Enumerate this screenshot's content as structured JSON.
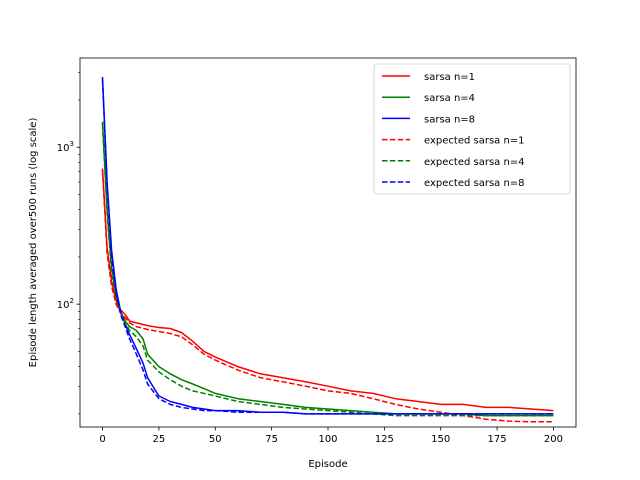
{
  "chart_data": {
    "type": "line",
    "title": "",
    "xlabel": "Episode",
    "ylabel": "Episode length averaged over500 runs (log scale)",
    "yscale": "log",
    "xlim": [
      -10,
      210
    ],
    "ylim": [
      16.5,
      3700
    ],
    "xticks": [
      0,
      25,
      50,
      75,
      100,
      125,
      150,
      175,
      200
    ],
    "yticks": [
      {
        "value": 100,
        "base": "10",
        "exp": "2"
      },
      {
        "value": 1000,
        "base": "10",
        "exp": "3"
      }
    ],
    "grid": false,
    "legend_position": "top-right",
    "series": [
      {
        "name": "sarsa n=1",
        "color": "#ff0000",
        "dash": "solid",
        "x": [
          0,
          2,
          4,
          6,
          8,
          10,
          12,
          15,
          20,
          25,
          30,
          35,
          40,
          45,
          50,
          60,
          70,
          80,
          90,
          100,
          110,
          120,
          130,
          140,
          150,
          160,
          170,
          180,
          190,
          200
        ],
        "y": [
          730,
          230,
          140,
          105,
          92,
          86,
          78,
          76,
          73,
          71,
          70,
          66,
          58,
          50,
          46,
          40,
          36,
          34,
          32,
          30,
          28,
          27,
          25,
          24,
          23,
          23,
          22,
          22,
          21.5,
          21
        ]
      },
      {
        "name": "sarsa n=4",
        "color": "#008000",
        "dash": "solid",
        "x": [
          0,
          2,
          4,
          6,
          8,
          10,
          12,
          15,
          18,
          20,
          25,
          30,
          35,
          40,
          45,
          50,
          60,
          70,
          80,
          90,
          100,
          110,
          120,
          130,
          140,
          150,
          160,
          170,
          180,
          190,
          200
        ],
        "y": [
          1450,
          400,
          170,
          115,
          90,
          78,
          72,
          68,
          60,
          48,
          40,
          36,
          33,
          31,
          29,
          27,
          25,
          24,
          23,
          22,
          21.5,
          21,
          20.5,
          20,
          20,
          20,
          20,
          19.5,
          19.5,
          19.5,
          19.5
        ]
      },
      {
        "name": "sarsa n=8",
        "color": "#0000ff",
        "dash": "solid",
        "x": [
          0,
          2,
          4,
          6,
          8,
          10,
          12,
          15,
          18,
          20,
          25,
          30,
          35,
          40,
          45,
          50,
          60,
          70,
          80,
          90,
          100,
          110,
          120,
          130,
          140,
          150,
          160,
          170,
          180,
          190,
          200
        ],
        "y": [
          2800,
          600,
          220,
          125,
          90,
          75,
          64,
          52,
          42,
          34,
          26,
          24,
          23,
          22,
          21.5,
          21,
          21,
          20.5,
          20.5,
          20,
          20,
          20,
          20,
          20,
          20,
          20,
          20,
          20,
          20,
          20,
          20
        ]
      },
      {
        "name": "expected sarsa n=1",
        "color": "#ff0000",
        "dash": "dashed",
        "x": [
          0,
          2,
          4,
          6,
          8,
          10,
          12,
          15,
          20,
          25,
          30,
          35,
          40,
          45,
          50,
          60,
          70,
          80,
          90,
          100,
          110,
          120,
          130,
          140,
          150,
          160,
          170,
          180,
          190,
          200
        ],
        "y": [
          720,
          210,
          130,
          100,
          88,
          82,
          76,
          72,
          69,
          67,
          65,
          62,
          55,
          48,
          44,
          38,
          34,
          32,
          30,
          28,
          27,
          25,
          23,
          21.5,
          20.5,
          19.5,
          18.5,
          18,
          17.8,
          17.8
        ]
      },
      {
        "name": "expected sarsa n=4",
        "color": "#008000",
        "dash": "dashed",
        "x": [
          0,
          2,
          4,
          6,
          8,
          10,
          12,
          15,
          18,
          20,
          25,
          30,
          35,
          40,
          45,
          50,
          60,
          70,
          80,
          90,
          100,
          110,
          120,
          130,
          140,
          150,
          160,
          170,
          180,
          190,
          200
        ],
        "y": [
          1400,
          380,
          160,
          110,
          88,
          76,
          68,
          62,
          54,
          44,
          37,
          33,
          30,
          28,
          27,
          26,
          24,
          23,
          22,
          21.5,
          21,
          20.5,
          20,
          19.5,
          19.5,
          19.5,
          19.5,
          19.5,
          19.5,
          19.5,
          19.5
        ]
      },
      {
        "name": "expected sarsa n=8",
        "color": "#0000ff",
        "dash": "dashed",
        "x": [
          0,
          2,
          4,
          6,
          8,
          10,
          12,
          15,
          18,
          20,
          25,
          30,
          35,
          40,
          45,
          50,
          60,
          70,
          80,
          90,
          100,
          110,
          120,
          130,
          140,
          150,
          160,
          170,
          180,
          190,
          200
        ],
        "y": [
          2700,
          560,
          200,
          118,
          86,
          72,
          60,
          48,
          38,
          31,
          25,
          23,
          22,
          21.5,
          21,
          21,
          20.5,
          20.5,
          20.5,
          20,
          20,
          20,
          20,
          20,
          20,
          20,
          20,
          20,
          20,
          20,
          20
        ]
      }
    ]
  }
}
